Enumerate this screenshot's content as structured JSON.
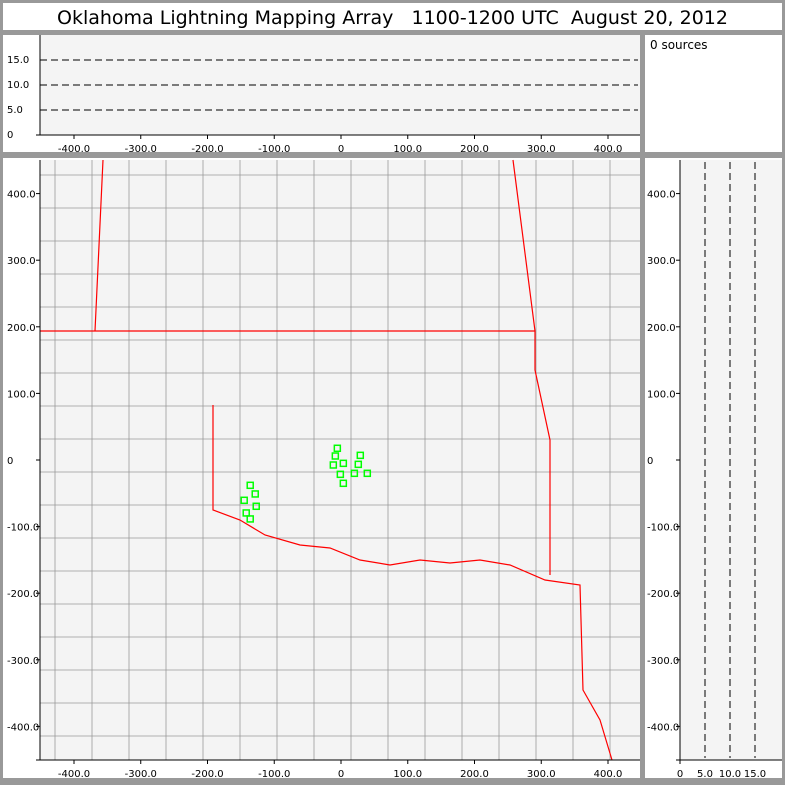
{
  "title": "Oklahoma Lightning Mapping Array   1100-1200 UTC  August 20, 2012",
  "sources_label": "0 sources",
  "colors": {
    "background": "#999999",
    "plot_bg": "#f4f4f4",
    "county": "#999999",
    "state_border": "#ff0000",
    "station": "#00ff00"
  },
  "chart_data": [
    {
      "type": "line",
      "panel": "altitude-vs-east-west",
      "xlim": [
        -450,
        450
      ],
      "ylim": [
        0,
        20
      ],
      "xticks": [
        "-400.0",
        "-300.0",
        "-200.0",
        "-100.0",
        "0",
        "100.0",
        "200.0",
        "300.0",
        "400.0"
      ],
      "yticks": [
        "0",
        "5.0",
        "10.0",
        "15.0"
      ],
      "dashed_lines_y": [
        5,
        10,
        15
      ]
    },
    {
      "type": "scatter",
      "panel": "plan-view",
      "xlim": [
        -450,
        450
      ],
      "ylim": [
        -450,
        450
      ],
      "xticks": [
        "-400.0",
        "-300.0",
        "-200.0",
        "-100.0",
        "0",
        "100.0",
        "200.0",
        "300.0",
        "400.0"
      ],
      "yticks": [
        "400.0",
        "300.0",
        "200.0",
        "100.0",
        "0",
        "-100.0",
        "-200.0",
        "-300.0",
        "-400.0"
      ],
      "map": "county and state boundaries",
      "stations": [
        [
          -5.5,
          17.6
        ],
        [
          -8.5,
          6
        ],
        [
          28.9,
          7
        ],
        [
          -11.5,
          -7.5
        ],
        [
          3.5,
          -5
        ],
        [
          25.9,
          -6.5
        ],
        [
          -1,
          -21.5
        ],
        [
          20,
          -20
        ],
        [
          39.4,
          -20
        ],
        [
          3.5,
          -35
        ],
        [
          -136,
          -38
        ],
        [
          -128.5,
          -51
        ],
        [
          -145,
          -60.5
        ],
        [
          -127,
          -69.5
        ],
        [
          -142,
          -79.5
        ],
        [
          -136,
          -88.5
        ]
      ]
    },
    {
      "type": "line",
      "panel": "north-south-vs-altitude",
      "xlim": [
        0,
        20
      ],
      "ylim": [
        -450,
        450
      ],
      "xticks": [
        "0",
        "5.0",
        "10.0",
        "15.0"
      ],
      "yticks": [
        "400.0",
        "300.0",
        "200.0",
        "100.0",
        "0",
        "-100.0",
        "-200.0",
        "-300.0",
        "-400.0"
      ],
      "dashed_lines_x": [
        5,
        10,
        15
      ]
    }
  ]
}
